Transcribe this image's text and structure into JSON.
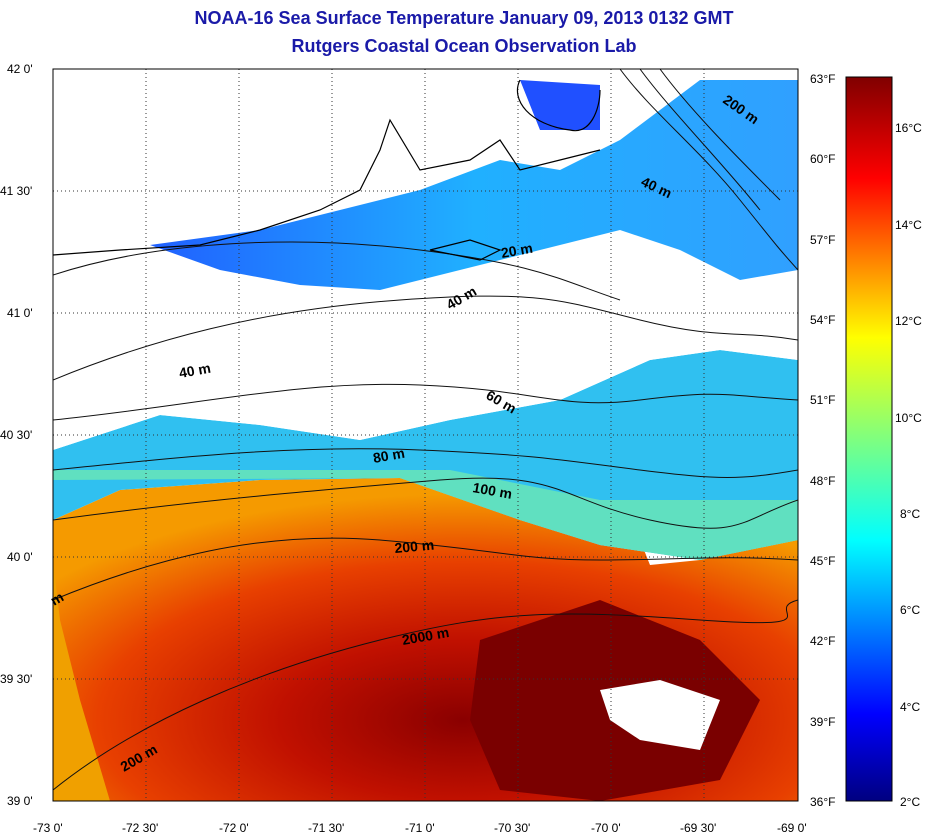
{
  "title_line1": "NOAA-16 Sea Surface Temperature January 09, 2013 0132 GMT",
  "title_line2": "Rutgers Coastal Ocean Observation Lab",
  "lat_labels": [
    "42 0'",
    "41 30'",
    "41 0'",
    "40 30'",
    "40 0'",
    "39 30'",
    "39 0'"
  ],
  "lon_labels": [
    "-73 0'",
    "-72 30'",
    "-72 0'",
    "-71 30'",
    "-71 0'",
    "-70 30'",
    "-70 0'",
    "-69 30'",
    "-69 0'"
  ],
  "colorbar_f_labels": [
    "63°F",
    "60°F",
    "57°F",
    "54°F",
    "51°F",
    "48°F",
    "45°F",
    "42°F",
    "39°F",
    "36°F"
  ],
  "colorbar_c_labels": [
    "16°C",
    "14°C",
    "12°C",
    "10°C",
    "8°C",
    "6°C",
    "4°C",
    "2°C"
  ],
  "contour_labels": [
    "200 m",
    "40 m",
    "20 m",
    "40 m",
    "40 m",
    "60 m",
    "80 m",
    "100 m",
    "200 m",
    "2000 m",
    "200 m",
    "m"
  ]
}
